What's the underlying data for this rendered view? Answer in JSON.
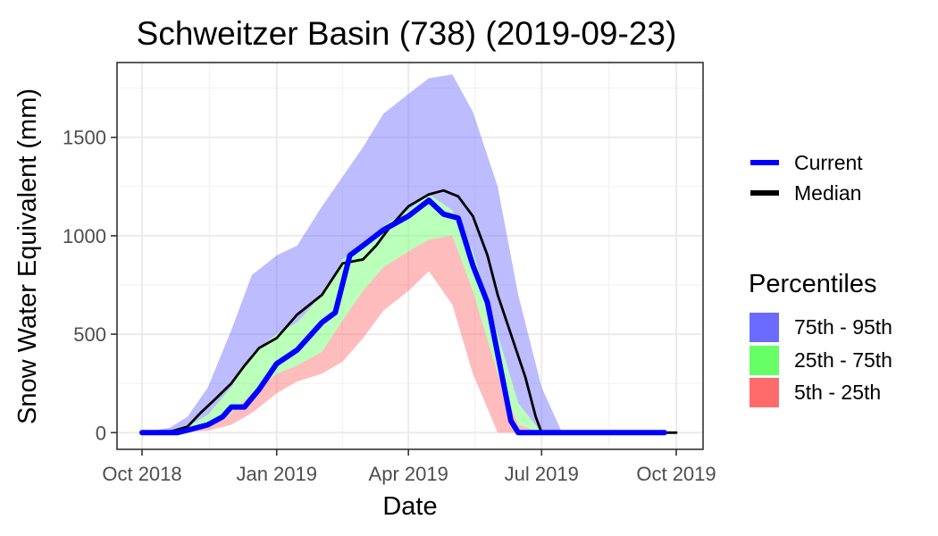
{
  "chart_data": {
    "type": "area",
    "title": "Schweitzer Basin (738) (2019-09-23)",
    "xlabel": "Date",
    "ylabel": "Snow Water Equivalent (mm)",
    "xlim": [
      "2018-10-01",
      "2019-10-01"
    ],
    "ylim": [
      -85,
      1880
    ],
    "x_ticks": [
      {
        "date": "2018-10-01",
        "label": "Oct 2018"
      },
      {
        "date": "2019-01-01",
        "label": "Jan 2019"
      },
      {
        "date": "2019-04-01",
        "label": "Apr 2019"
      },
      {
        "date": "2019-07-01",
        "label": "Jul 2019"
      },
      {
        "date": "2019-10-01",
        "label": "Oct 2019"
      }
    ],
    "y_ticks": [
      0,
      500,
      1000,
      1500
    ],
    "grid": true,
    "legend": {
      "position": "right",
      "lines": [
        {
          "label": "Current",
          "color": "#0000ff"
        },
        {
          "label": "Median",
          "color": "#000000"
        }
      ],
      "fill_title": "Percentiles",
      "fills": [
        {
          "label": "75th - 95th",
          "color": "#6b6bff"
        },
        {
          "label": "25th - 75th",
          "color": "#66ff66"
        },
        {
          "label": "5th - 25th",
          "color": "#ff6b6b"
        }
      ]
    },
    "bands": [
      {
        "label": "75th - 95th",
        "color": "#6b6bff",
        "x": [
          "2018-10-01",
          "2018-10-20",
          "2018-11-01",
          "2018-11-15",
          "2018-12-01",
          "2018-12-15",
          "2019-01-01",
          "2019-01-15",
          "2019-02-01",
          "2019-02-15",
          "2019-03-01",
          "2019-03-15",
          "2019-04-01",
          "2019-04-15",
          "2019-05-01",
          "2019-05-15",
          "2019-06-01",
          "2019-06-15",
          "2019-07-01",
          "2019-07-15",
          "2019-08-01"
        ],
        "upper": [
          0,
          25,
          80,
          230,
          520,
          800,
          900,
          950,
          1150,
          1300,
          1450,
          1620,
          1720,
          1800,
          1820,
          1630,
          1250,
          700,
          230,
          0,
          0
        ],
        "lower": [
          0,
          10,
          30,
          90,
          230,
          400,
          500,
          560,
          700,
          880,
          950,
          1050,
          1130,
          1210,
          1130,
          920,
          500,
          150,
          0,
          0,
          0
        ]
      },
      {
        "label": "25th - 75th",
        "color": "#66ff66",
        "x": [
          "2018-10-01",
          "2018-10-20",
          "2018-11-01",
          "2018-11-15",
          "2018-12-01",
          "2018-12-15",
          "2019-01-01",
          "2019-01-15",
          "2019-02-01",
          "2019-02-15",
          "2019-03-01",
          "2019-03-15",
          "2019-04-01",
          "2019-04-15",
          "2019-05-01",
          "2019-05-15",
          "2019-06-01",
          "2019-06-15",
          "2019-07-01",
          "2019-07-15"
        ],
        "upper": [
          0,
          10,
          30,
          90,
          230,
          400,
          500,
          560,
          700,
          880,
          950,
          1050,
          1130,
          1210,
          1130,
          920,
          500,
          150,
          0,
          0
        ],
        "lower": [
          0,
          5,
          15,
          40,
          100,
          200,
          300,
          340,
          410,
          570,
          720,
          840,
          920,
          980,
          1000,
          720,
          300,
          40,
          0,
          0
        ]
      },
      {
        "label": "5th - 25th",
        "color": "#ff6b6b",
        "x": [
          "2018-10-01",
          "2018-10-20",
          "2018-11-01",
          "2018-11-15",
          "2018-12-01",
          "2018-12-15",
          "2019-01-01",
          "2019-01-15",
          "2019-02-01",
          "2019-02-15",
          "2019-03-01",
          "2019-03-15",
          "2019-04-01",
          "2019-04-15",
          "2019-05-01",
          "2019-05-15",
          "2019-06-01",
          "2019-06-15",
          "2019-07-01"
        ],
        "upper": [
          0,
          5,
          15,
          40,
          100,
          200,
          300,
          340,
          410,
          570,
          720,
          840,
          920,
          980,
          1000,
          720,
          300,
          40,
          0
        ],
        "lower": [
          0,
          0,
          5,
          10,
          40,
          100,
          200,
          260,
          300,
          360,
          480,
          620,
          720,
          820,
          650,
          300,
          0,
          0,
          0
        ]
      }
    ],
    "series": [
      {
        "name": "Median",
        "color": "#000000",
        "x": [
          "2018-10-01",
          "2018-10-20",
          "2018-11-01",
          "2018-11-10",
          "2018-11-20",
          "2018-12-01",
          "2018-12-10",
          "2018-12-20",
          "2019-01-01",
          "2019-01-15",
          "2019-02-01",
          "2019-02-15",
          "2019-03-01",
          "2019-03-10",
          "2019-03-20",
          "2019-04-01",
          "2019-04-15",
          "2019-04-25",
          "2019-05-05",
          "2019-05-15",
          "2019-05-25",
          "2019-06-01",
          "2019-06-10",
          "2019-06-20",
          "2019-06-27",
          "2019-07-01",
          "2019-08-01",
          "2019-09-01",
          "2019-10-01"
        ],
        "y": [
          0,
          5,
          30,
          100,
          170,
          250,
          340,
          430,
          480,
          600,
          700,
          860,
          880,
          950,
          1050,
          1150,
          1210,
          1230,
          1200,
          1100,
          900,
          700,
          500,
          280,
          80,
          0,
          0,
          0,
          0
        ]
      },
      {
        "name": "Current",
        "color": "#0000ff",
        "x": [
          "2018-10-01",
          "2018-10-25",
          "2018-11-05",
          "2018-11-15",
          "2018-11-25",
          "2018-12-01",
          "2018-12-10",
          "2018-12-20",
          "2019-01-01",
          "2019-01-15",
          "2019-02-01",
          "2019-02-10",
          "2019-02-20",
          "2019-03-01",
          "2019-03-15",
          "2019-04-01",
          "2019-04-15",
          "2019-04-25",
          "2019-05-05",
          "2019-05-15",
          "2019-05-25",
          "2019-06-01",
          "2019-06-10",
          "2019-06-15",
          "2019-06-20",
          "2019-07-01",
          "2019-08-01",
          "2019-09-01",
          "2019-09-23"
        ],
        "y": [
          0,
          0,
          20,
          40,
          80,
          130,
          130,
          220,
          350,
          420,
          560,
          610,
          900,
          950,
          1030,
          1100,
          1180,
          1110,
          1090,
          850,
          660,
          400,
          60,
          0,
          0,
          0,
          0,
          0,
          0
        ]
      }
    ]
  }
}
